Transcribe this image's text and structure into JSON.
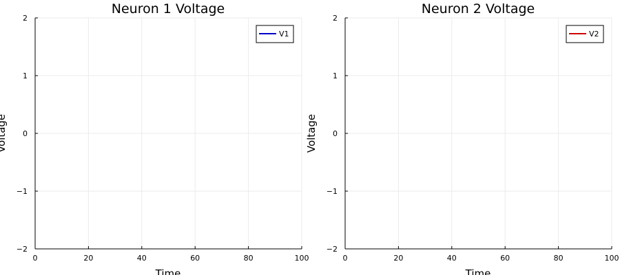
{
  "chart_data": [
    {
      "type": "line",
      "title": "Neuron 1 Voltage",
      "xlabel": "Time",
      "ylabel": "Voltage",
      "xlim": [
        0,
        100
      ],
      "ylim": [
        -2,
        2
      ],
      "x_ticks": [
        0,
        20,
        40,
        60,
        80,
        100
      ],
      "y_ticks": [
        -2,
        -1,
        0,
        1,
        2
      ],
      "x_tick_labels": [
        "0",
        "20",
        "40",
        "60",
        "80",
        "100"
      ],
      "y_tick_labels": [
        "−2",
        "−1",
        "0",
        "1",
        "2"
      ],
      "grid": true,
      "legend_position": "top-right",
      "series": [
        {
          "name": "V1",
          "color": "#0000cc",
          "x": [],
          "y": []
        }
      ]
    },
    {
      "type": "line",
      "title": "Neuron 2 Voltage",
      "xlabel": "Time",
      "ylabel": "Voltage",
      "xlim": [
        0,
        100
      ],
      "ylim": [
        -2,
        2
      ],
      "x_ticks": [
        0,
        20,
        40,
        60,
        80,
        100
      ],
      "y_ticks": [
        -2,
        -1,
        0,
        1,
        2
      ],
      "x_tick_labels": [
        "0",
        "20",
        "40",
        "60",
        "80",
        "100"
      ],
      "y_tick_labels": [
        "−2",
        "−1",
        "0",
        "1",
        "2"
      ],
      "grid": true,
      "legend_position": "top-right",
      "series": [
        {
          "name": "V2",
          "color": "#cc0000",
          "x": [],
          "y": []
        }
      ]
    }
  ]
}
